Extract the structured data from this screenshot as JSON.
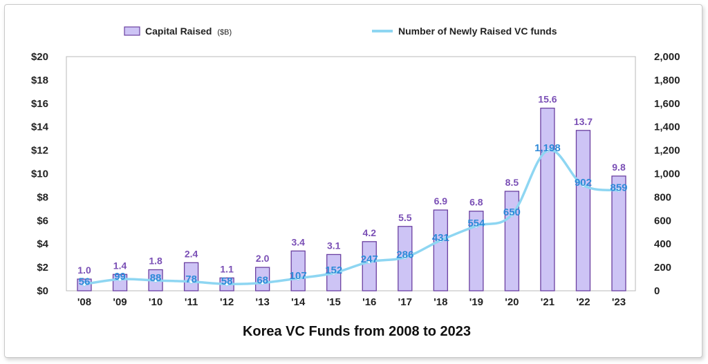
{
  "chart_data": {
    "type": "bar",
    "title": "Korea VC Funds from 2008 to 2023",
    "categories": [
      "'08",
      "'09",
      "'10",
      "'11",
      "'12",
      "'13",
      "'14",
      "'15",
      "'16",
      "'17",
      "'18",
      "'19",
      "'20",
      "'21",
      "'22",
      "'23"
    ],
    "series": [
      {
        "name": "Capital Raised",
        "unit": "($B)",
        "type": "bar",
        "axis": "left",
        "color": "#cdc4f5",
        "border": "#6a3fa0",
        "values": [
          1.0,
          1.4,
          1.8,
          2.4,
          1.1,
          2.0,
          3.4,
          3.1,
          4.2,
          5.5,
          6.9,
          6.8,
          8.5,
          15.6,
          13.7,
          9.8
        ],
        "labels": [
          "1.0",
          "1.4",
          "1.8",
          "2.4",
          "1.1",
          "2.0",
          "3.4",
          "3.1",
          "4.2",
          "5.5",
          "6.9",
          "6.8",
          "8.5",
          "15.6",
          "13.7",
          "9.8"
        ]
      },
      {
        "name": "Number of Newly Raised VC funds",
        "type": "line",
        "axis": "right",
        "color": "#8ed6f2",
        "values": [
          56,
          99,
          88,
          78,
          58,
          68,
          107,
          152,
          247,
          286,
          431,
          554,
          650,
          1198,
          902,
          859
        ],
        "labels": [
          "56",
          "99",
          "88",
          "78",
          "58",
          "68",
          "107",
          "152",
          "247",
          "286",
          "431",
          "554",
          "650",
          "1,198",
          "902",
          "859"
        ]
      }
    ],
    "y_left": {
      "range": [
        0,
        20
      ],
      "tick_labels": [
        "$0",
        "$2",
        "$4",
        "$6",
        "$8",
        "$10",
        "$12",
        "$14",
        "$16",
        "$18",
        "$20"
      ]
    },
    "y_right": {
      "range": [
        0,
        2000
      ],
      "tick_labels": [
        "0",
        "200",
        "400",
        "600",
        "800",
        "1,000",
        "1,200",
        "1,400",
        "1,600",
        "1,800",
        "2,000"
      ]
    },
    "grid": false,
    "legend": "top"
  }
}
